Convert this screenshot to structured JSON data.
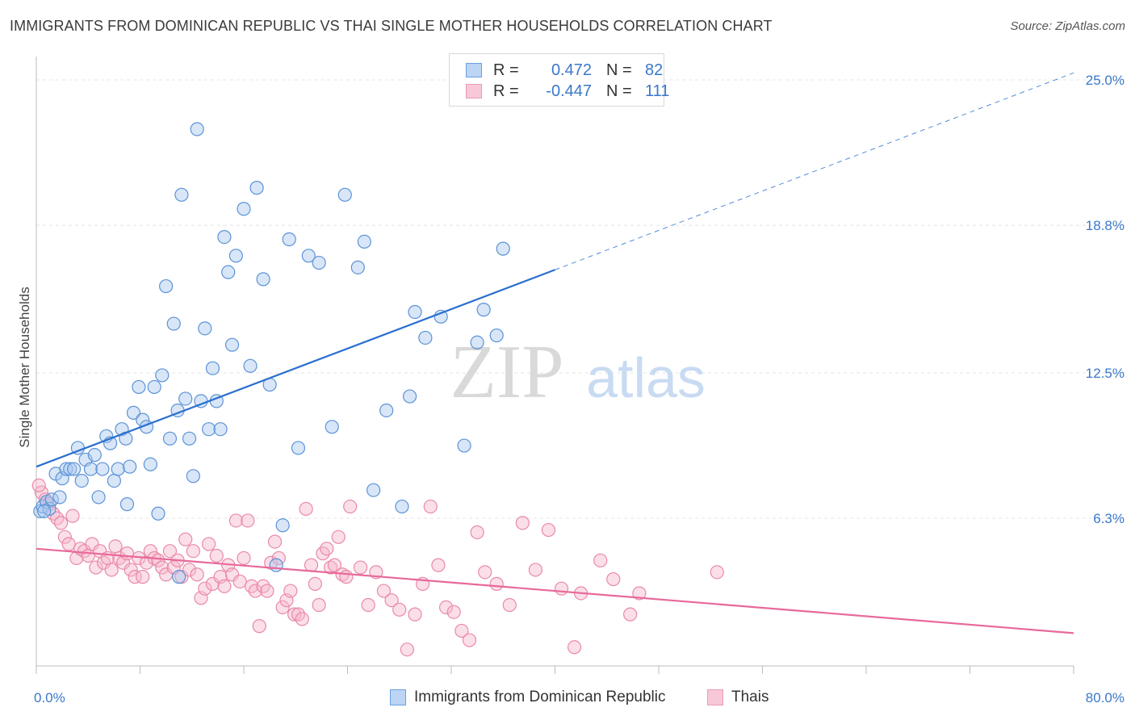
{
  "title": "IMMIGRANTS FROM DOMINICAN REPUBLIC VS THAI SINGLE MOTHER HOUSEHOLDS CORRELATION CHART",
  "source": "Source: ZipAtlas.com",
  "watermark": {
    "zip": "ZIP",
    "atlas": "atlas"
  },
  "legend": {
    "r_label": "R =",
    "n_label": "N =",
    "series": [
      {
        "r": "0.472",
        "n": "82"
      },
      {
        "r": "-0.447",
        "n": "111"
      }
    ]
  },
  "colors": {
    "blue_fill": "#a8c8f0",
    "blue_stroke": "#5b93d6",
    "blue_line": "#2a6fcf",
    "pink_fill": "#f6b8cc",
    "pink_stroke": "#e989a8",
    "pink_line": "#e8699a",
    "tick_text": "#3a78c9",
    "grid": "#e4e4e4"
  },
  "chart_data": {
    "type": "scatter",
    "title": "IMMIGRANTS FROM DOMINICAN REPUBLIC VS THAI SINGLE MOTHER HOUSEHOLDS CORRELATION CHART",
    "xlabel": "",
    "ylabel": "Single Mother Households",
    "xlim": [
      0,
      80
    ],
    "ylim": [
      0,
      26
    ],
    "x_tick_labels": [
      "0.0%",
      "80.0%"
    ],
    "y_ticks": [
      6.3,
      12.5,
      18.8,
      25.0
    ],
    "y_tick_labels": [
      "6.3%",
      "12.5%",
      "18.8%",
      "25.0%"
    ],
    "grid": true,
    "legend_position": "bottom",
    "series": [
      {
        "name": "Immigrants from Dominican Republic",
        "r": 0.472,
        "n": 82,
        "trend": {
          "x": [
            0,
            40
          ],
          "y": [
            8.5,
            16.9
          ],
          "dashed_to": [
            80,
            25.3
          ]
        },
        "points": [
          [
            0.3,
            6.6
          ],
          [
            0.5,
            6.8
          ],
          [
            0.8,
            7.0
          ],
          [
            1.0,
            6.7
          ],
          [
            1.2,
            7.1
          ],
          [
            1.5,
            8.2
          ],
          [
            1.8,
            7.2
          ],
          [
            2.0,
            8.0
          ],
          [
            2.3,
            8.4
          ],
          [
            2.6,
            8.4
          ],
          [
            2.9,
            8.4
          ],
          [
            3.2,
            9.3
          ],
          [
            3.5,
            7.9
          ],
          [
            3.8,
            8.8
          ],
          [
            4.2,
            8.4
          ],
          [
            4.5,
            9.0
          ],
          [
            4.8,
            7.2
          ],
          [
            5.1,
            8.4
          ],
          [
            5.4,
            9.8
          ],
          [
            5.7,
            9.5
          ],
          [
            6.0,
            7.9
          ],
          [
            6.3,
            8.4
          ],
          [
            6.6,
            10.1
          ],
          [
            6.9,
            9.7
          ],
          [
            7.2,
            8.5
          ],
          [
            7.5,
            10.8
          ],
          [
            7.9,
            11.9
          ],
          [
            8.2,
            10.5
          ],
          [
            8.5,
            10.2
          ],
          [
            8.8,
            8.6
          ],
          [
            9.1,
            11.9
          ],
          [
            9.4,
            6.5
          ],
          [
            9.7,
            12.4
          ],
          [
            10.0,
            16.2
          ],
          [
            10.3,
            9.7
          ],
          [
            10.6,
            14.6
          ],
          [
            10.9,
            10.9
          ],
          [
            11.2,
            20.1
          ],
          [
            11.5,
            11.4
          ],
          [
            11.8,
            9.7
          ],
          [
            12.1,
            8.1
          ],
          [
            12.4,
            22.9
          ],
          [
            12.7,
            11.3
          ],
          [
            13.0,
            14.4
          ],
          [
            13.3,
            10.1
          ],
          [
            13.6,
            12.7
          ],
          [
            13.9,
            11.3
          ],
          [
            14.2,
            10.1
          ],
          [
            14.5,
            18.3
          ],
          [
            14.8,
            16.8
          ],
          [
            15.1,
            13.7
          ],
          [
            15.4,
            17.5
          ],
          [
            16.0,
            19.5
          ],
          [
            16.5,
            12.8
          ],
          [
            17.0,
            20.4
          ],
          [
            17.5,
            16.5
          ],
          [
            18.0,
            12.0
          ],
          [
            18.5,
            4.3
          ],
          [
            19.0,
            6.0
          ],
          [
            19.5,
            18.2
          ],
          [
            20.2,
            9.3
          ],
          [
            21.0,
            17.5
          ],
          [
            21.8,
            17.2
          ],
          [
            22.8,
            10.2
          ],
          [
            23.8,
            20.1
          ],
          [
            24.8,
            17.0
          ],
          [
            25.3,
            18.1
          ],
          [
            26.0,
            7.5
          ],
          [
            27.0,
            10.9
          ],
          [
            28.2,
            6.8
          ],
          [
            28.8,
            11.5
          ],
          [
            29.2,
            15.1
          ],
          [
            30.0,
            14.0
          ],
          [
            31.2,
            14.9
          ],
          [
            33.0,
            9.4
          ],
          [
            34.0,
            13.8
          ],
          [
            34.5,
            15.2
          ],
          [
            35.5,
            14.1
          ],
          [
            36.0,
            17.8
          ],
          [
            7.0,
            6.9
          ],
          [
            0.6,
            6.6
          ],
          [
            11.0,
            3.8
          ]
        ]
      },
      {
        "name": "Thais",
        "r": -0.447,
        "n": 111,
        "trend": {
          "x": [
            0,
            80
          ],
          "y": [
            5.0,
            1.4
          ]
        },
        "points": [
          [
            0.4,
            7.4
          ],
          [
            0.7,
            7.1
          ],
          [
            1.0,
            6.9
          ],
          [
            1.3,
            6.5
          ],
          [
            1.6,
            6.3
          ],
          [
            1.9,
            6.1
          ],
          [
            2.2,
            5.5
          ],
          [
            2.5,
            5.2
          ],
          [
            2.8,
            6.4
          ],
          [
            3.1,
            4.6
          ],
          [
            3.4,
            5.0
          ],
          [
            3.7,
            4.9
          ],
          [
            4.0,
            4.7
          ],
          [
            4.3,
            5.2
          ],
          [
            4.6,
            4.2
          ],
          [
            4.9,
            4.9
          ],
          [
            5.2,
            4.4
          ],
          [
            5.5,
            4.6
          ],
          [
            5.8,
            4.1
          ],
          [
            6.1,
            5.1
          ],
          [
            6.4,
            4.6
          ],
          [
            6.7,
            4.4
          ],
          [
            7.0,
            4.8
          ],
          [
            7.3,
            4.1
          ],
          [
            7.6,
            3.8
          ],
          [
            7.9,
            4.6
          ],
          [
            8.2,
            3.8
          ],
          [
            8.5,
            4.4
          ],
          [
            8.8,
            4.9
          ],
          [
            9.1,
            4.6
          ],
          [
            9.4,
            4.5
          ],
          [
            9.7,
            4.2
          ],
          [
            10.0,
            3.9
          ],
          [
            10.3,
            4.9
          ],
          [
            10.6,
            4.2
          ],
          [
            10.9,
            4.5
          ],
          [
            11.2,
            3.8
          ],
          [
            11.5,
            5.4
          ],
          [
            11.8,
            4.1
          ],
          [
            12.1,
            4.9
          ],
          [
            12.4,
            3.9
          ],
          [
            12.7,
            2.9
          ],
          [
            13.0,
            3.3
          ],
          [
            13.3,
            5.2
          ],
          [
            13.6,
            3.5
          ],
          [
            13.9,
            4.7
          ],
          [
            14.2,
            3.8
          ],
          [
            14.5,
            3.4
          ],
          [
            14.8,
            4.3
          ],
          [
            15.1,
            3.9
          ],
          [
            15.4,
            6.2
          ],
          [
            15.7,
            3.6
          ],
          [
            16.0,
            4.6
          ],
          [
            16.3,
            6.2
          ],
          [
            16.6,
            3.4
          ],
          [
            16.9,
            3.2
          ],
          [
            17.2,
            1.7
          ],
          [
            17.5,
            3.4
          ],
          [
            17.8,
            3.2
          ],
          [
            18.1,
            4.4
          ],
          [
            18.4,
            5.3
          ],
          [
            18.7,
            4.6
          ],
          [
            19.0,
            2.5
          ],
          [
            19.3,
            2.8
          ],
          [
            19.6,
            3.2
          ],
          [
            19.9,
            2.2
          ],
          [
            20.2,
            2.2
          ],
          [
            20.5,
            2.0
          ],
          [
            20.8,
            6.7
          ],
          [
            21.2,
            4.3
          ],
          [
            21.5,
            3.5
          ],
          [
            21.8,
            2.6
          ],
          [
            22.1,
            4.8
          ],
          [
            22.4,
            5.0
          ],
          [
            22.7,
            4.2
          ],
          [
            23.0,
            4.3
          ],
          [
            23.3,
            5.5
          ],
          [
            23.6,
            3.9
          ],
          [
            23.9,
            3.8
          ],
          [
            24.2,
            6.8
          ],
          [
            25.0,
            4.2
          ],
          [
            25.6,
            2.6
          ],
          [
            26.2,
            4.0
          ],
          [
            26.8,
            3.2
          ],
          [
            27.4,
            2.8
          ],
          [
            28.0,
            2.4
          ],
          [
            28.6,
            0.7
          ],
          [
            29.2,
            2.2
          ],
          [
            29.8,
            3.5
          ],
          [
            30.4,
            6.8
          ],
          [
            31.0,
            4.3
          ],
          [
            31.6,
            2.5
          ],
          [
            32.2,
            2.3
          ],
          [
            32.8,
            1.5
          ],
          [
            33.4,
            1.1
          ],
          [
            34.0,
            5.7
          ],
          [
            34.6,
            4.0
          ],
          [
            35.5,
            3.5
          ],
          [
            36.5,
            2.6
          ],
          [
            37.5,
            6.1
          ],
          [
            38.5,
            4.1
          ],
          [
            39.5,
            5.8
          ],
          [
            40.5,
            3.3
          ],
          [
            41.5,
            0.8
          ],
          [
            42.0,
            3.1
          ],
          [
            43.5,
            4.5
          ],
          [
            44.5,
            3.7
          ],
          [
            45.8,
            2.2
          ],
          [
            46.5,
            3.1
          ],
          [
            52.5,
            4.0
          ],
          [
            0.2,
            7.7
          ]
        ]
      }
    ]
  },
  "bottom_legend": [
    "Immigrants from Dominican Republic",
    "Thais"
  ]
}
